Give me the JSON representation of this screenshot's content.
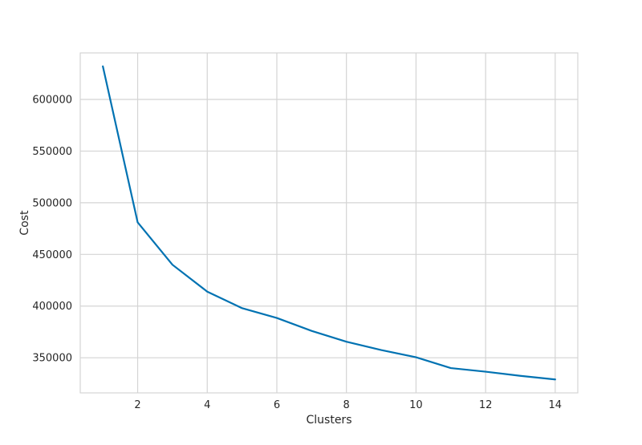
{
  "chart_data": {
    "type": "line",
    "xlabel": "Clusters",
    "ylabel": "Cost",
    "xlim": [
      0.35,
      14.65
    ],
    "ylim": [
      316000,
      645000
    ],
    "xticks": [
      2,
      4,
      6,
      8,
      10,
      12,
      14
    ],
    "yticks": [
      350000,
      400000,
      450000,
      500000,
      550000,
      600000
    ],
    "grid": true,
    "colors": {
      "line": "#0072B2",
      "grid": "#d4d4d4",
      "frame": "#d4d4d4",
      "text": "#262626"
    },
    "series": [
      {
        "x": [
          1,
          2,
          3,
          4,
          5,
          6,
          7,
          8,
          9,
          10,
          11,
          12,
          13,
          14
        ],
        "values": [
          632000,
          481000,
          440000,
          414000,
          398000,
          388500,
          376000,
          365500,
          357500,
          350500,
          340000,
          336500,
          332500,
          329000
        ]
      }
    ]
  }
}
